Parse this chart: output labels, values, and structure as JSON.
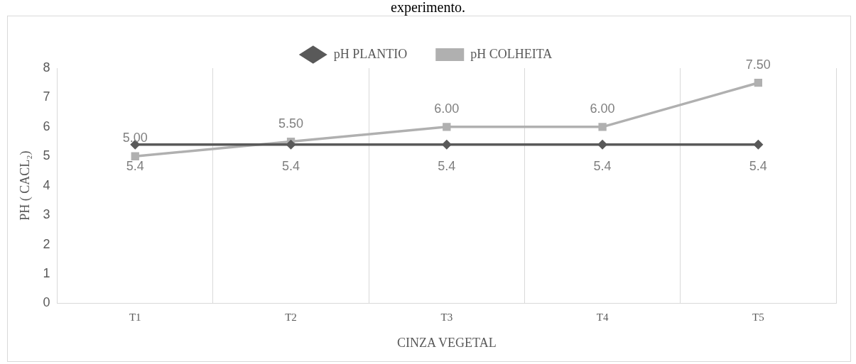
{
  "chart_data": {
    "type": "line",
    "title": "experimento.",
    "xlabel": "CINZA VEGETAL",
    "ylabel": "PH ( CACL₂)",
    "categories": [
      "T1",
      "T2",
      "T3",
      "T4",
      "T5"
    ],
    "series": [
      {
        "name": "pH PLANTIO",
        "color": "#595959",
        "marker": "diamond",
        "values": [
          5.4,
          5.4,
          5.4,
          5.4,
          5.4
        ],
        "value_labels": [
          "5.4",
          "5.4",
          "5.4",
          "5.4",
          "5.4"
        ]
      },
      {
        "name": "pH COLHEITA",
        "color": "#b0b0b0",
        "marker": "square",
        "values": [
          5.0,
          5.5,
          6.0,
          6.0,
          7.5
        ],
        "value_labels": [
          "5.00",
          "5.50",
          "6.00",
          "6.00",
          "7.50"
        ]
      }
    ],
    "ylim": [
      0,
      8
    ],
    "yticks": [
      0,
      1,
      2,
      3,
      4,
      5,
      6,
      7,
      8
    ],
    "grid": "x",
    "legend": "top",
    "line_style": "solid"
  }
}
